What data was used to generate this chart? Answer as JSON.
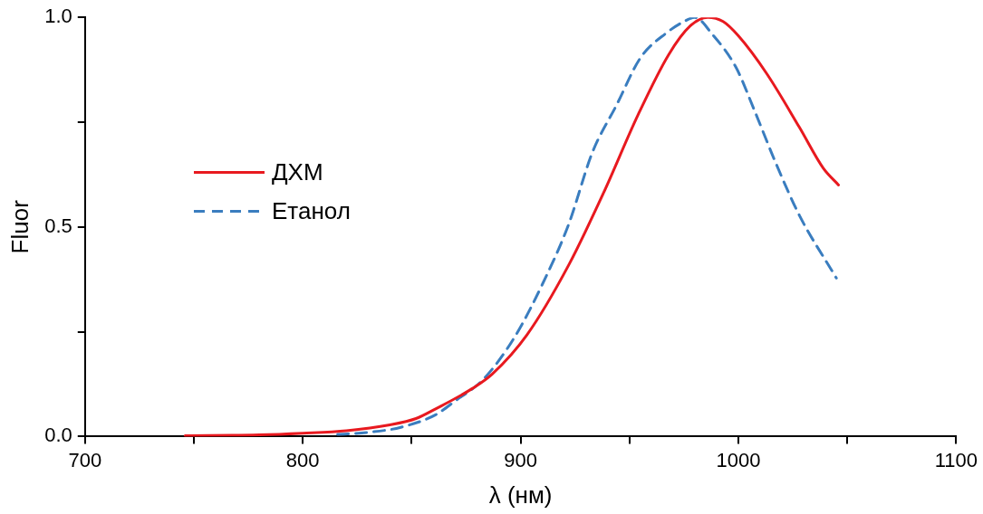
{
  "chart_data": {
    "type": "line",
    "xlabel": "λ (нм)",
    "ylabel": "Fluor",
    "xlim": [
      700,
      1100
    ],
    "xticks": [
      700,
      {
        "value": 750,
        "label": null
      },
      800,
      {
        "value": 850,
        "label": null
      },
      900,
      {
        "value": 950,
        "label": null
      },
      1000,
      {
        "value": 1050,
        "label": null
      },
      1100
    ],
    "ylim": [
      0,
      1.0
    ],
    "yticks": [
      {
        "value": 0,
        "label": "0.0"
      },
      {
        "value": 0.25,
        "label": null
      },
      0.5,
      {
        "value": 0.75,
        "label": null
      },
      {
        "value": 1.0,
        "label": "1.0"
      }
    ],
    "grid": false,
    "legend": "left",
    "marker": "none",
    "series": [
      {
        "name": "ДХМ",
        "color": "#e8191f",
        "line_style": "solid",
        "x": [
          746,
          780,
          800,
          820,
          840,
          852,
          861,
          878,
          887,
          903,
          922,
          938,
          954,
          968,
          978,
          986,
          993,
          1000,
          1013,
          1028,
          1039,
          1046
        ],
        "values": [
          0.002,
          0.004,
          0.008,
          0.014,
          0.028,
          0.043,
          0.066,
          0.115,
          0.149,
          0.243,
          0.408,
          0.58,
          0.768,
          0.911,
          0.98,
          1.0,
          0.99,
          0.956,
          0.866,
          0.738,
          0.64,
          0.6
        ]
      },
      {
        "name": "Етанол",
        "color": "#3a7dbf",
        "line_style": "dashed",
        "x": [
          816,
          830,
          845,
          861,
          870,
          883,
          897,
          910,
          922,
          933,
          944,
          955,
          967,
          975,
          980,
          988,
          999,
          1007,
          1017,
          1028,
          1045
        ],
        "values": [
          0.005,
          0.01,
          0.022,
          0.052,
          0.085,
          0.137,
          0.235,
          0.363,
          0.505,
          0.678,
          0.79,
          0.903,
          0.963,
          0.99,
          1.0,
          0.96,
          0.88,
          0.783,
          0.655,
          0.528,
          0.378
        ]
      }
    ]
  }
}
